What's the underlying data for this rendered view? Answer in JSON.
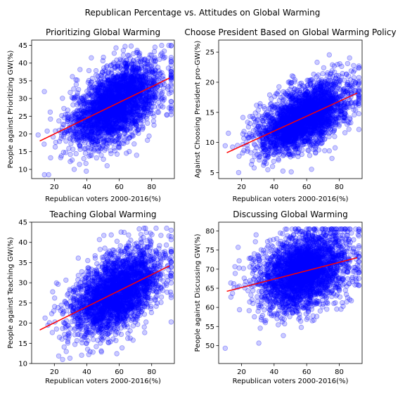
{
  "figure": {
    "title": "Republican Percentage vs. Attitudes on Global Warming"
  },
  "colors": {
    "points": "#0000ff",
    "fit_line": "#ff0000",
    "axes": "#000000"
  },
  "chart_data": [
    {
      "type": "scatter",
      "title": "Prioritizing Global Warming",
      "xlabel": "Republican voters 2000-2016(%)",
      "ylabel": "People against Prioritizing GW(%)",
      "xlim": [
        6,
        94
      ],
      "ylim": [
        7.4,
        46.5
      ],
      "xticks": [
        20,
        40,
        60,
        80
      ],
      "yticks": [
        10,
        15,
        20,
        25,
        30,
        35,
        40,
        45
      ],
      "scatter_model": {
        "mean_x": 58,
        "sd_x": 14,
        "x_min": 10,
        "x_max": 92,
        "slope": 0.22,
        "sd_noise": 5.0,
        "y_min": 8.5,
        "y_max": 45,
        "n_points": 2800
      },
      "fit_line": {
        "x": [
          11,
          91
        ],
        "y": [
          18,
          35.8
        ]
      }
    },
    {
      "type": "scatter",
      "title": "Choose President Based on Global Warming Policy",
      "xlabel": "Republican voters 2000-2016(%)",
      "ylabel": "Against Choosing President pro-GW(%)",
      "xlim": [
        6,
        94
      ],
      "ylim": [
        4.0,
        27.0
      ],
      "xticks": [
        20,
        40,
        60,
        80
      ],
      "yticks": [
        5,
        10,
        15,
        20,
        25
      ],
      "scatter_model": {
        "mean_x": 58,
        "sd_x": 14,
        "x_min": 10,
        "x_max": 92,
        "slope": 0.12,
        "sd_noise": 2.5,
        "y_min": 5,
        "y_max": 26,
        "n_points": 2800
      },
      "fit_line": {
        "x": [
          11,
          91
        ],
        "y": [
          8.3,
          18.2
        ]
      }
    },
    {
      "type": "scatter",
      "title": "Teaching Global Warming",
      "xlabel": "Republican voters 2000-2016(%)",
      "ylabel": "People against Teaching GW(%)",
      "xlim": [
        6,
        94
      ],
      "ylim": [
        10,
        45
      ],
      "xticks": [
        20,
        40,
        60,
        80
      ],
      "yticks": [
        10,
        15,
        20,
        25,
        30,
        35,
        40,
        45
      ],
      "scatter_model": {
        "mean_x": 58,
        "sd_x": 14,
        "x_min": 10,
        "x_max": 92,
        "slope": 0.2,
        "sd_noise": 4.5,
        "y_min": 11,
        "y_max": 43.5,
        "n_points": 2800
      },
      "fit_line": {
        "x": [
          11,
          91
        ],
        "y": [
          18.3,
          34.2
        ]
      }
    },
    {
      "type": "scatter",
      "title": "Discussing Global Warming",
      "xlabel": "Republican voters 2000-2016(%)",
      "ylabel": "People against Discussing GW(%)",
      "xlim": [
        6,
        94
      ],
      "ylim": [
        45.3,
        82.3
      ],
      "xticks": [
        20,
        40,
        60,
        80
      ],
      "yticks": [
        50,
        55,
        60,
        65,
        70,
        75,
        80
      ],
      "scatter_model": {
        "mean_x": 58,
        "sd_x": 14,
        "x_min": 10,
        "x_max": 92,
        "slope": 0.11,
        "sd_noise": 5.0,
        "y_min": 46.5,
        "y_max": 80.5,
        "n_points": 2800
      },
      "fit_line": {
        "x": [
          11,
          91
        ],
        "y": [
          64.2,
          73
        ]
      }
    }
  ]
}
